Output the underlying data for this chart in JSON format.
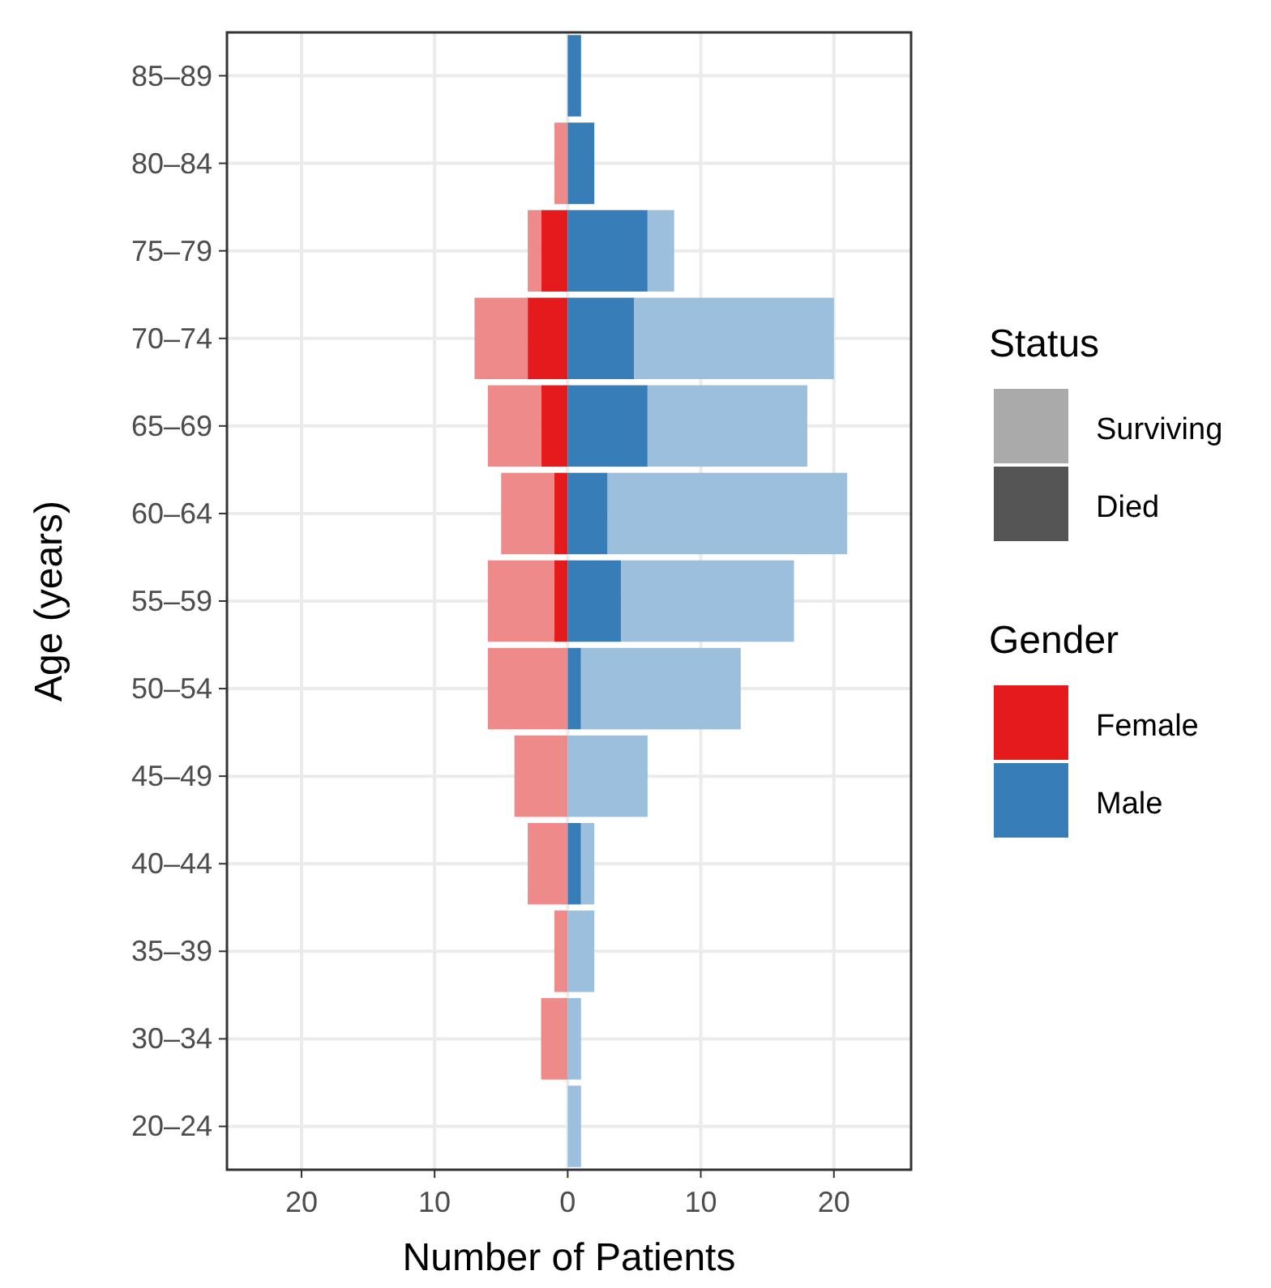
{
  "chart_data": {
    "type": "bar",
    "orientation": "horizontal",
    "stacked": true,
    "xlabel": "Number of Patients",
    "ylabel": "Age (years)",
    "categories": [
      "85–89",
      "80–84",
      "75–79",
      "70–74",
      "65–69",
      "60–64",
      "55–59",
      "50–54",
      "45–49",
      "40–44",
      "35–39",
      "30–34",
      "20–24"
    ],
    "xlim": [
      -25.6,
      25.8
    ],
    "xticks": [
      {
        "value": -20,
        "label": "20"
      },
      {
        "value": -10,
        "label": "10"
      },
      0,
      10,
      20
    ],
    "grid": true,
    "annotations": [
      "Surviving",
      "Died",
      "Female",
      "Male"
    ],
    "legend_title": [
      "Status",
      "Gender"
    ],
    "series": [
      {
        "color": "#e41a1c",
        "values": [
          0,
          0,
          -2,
          -3,
          -2,
          -1,
          -1,
          0,
          0,
          0,
          0,
          0,
          0
        ]
      },
      {
        "color": "#ef8a8b",
        "values": [
          0,
          -1,
          -1,
          -4,
          -4,
          -4,
          -5,
          -6,
          -4,
          -3,
          -1,
          -2,
          0
        ]
      },
      {
        "color": "#377eb8",
        "values": [
          1,
          2,
          6,
          5,
          6,
          3,
          4,
          1,
          0,
          1,
          0,
          0,
          0
        ]
      },
      {
        "color": "#9bbfdc",
        "values": [
          0,
          0,
          2,
          15,
          12,
          18,
          13,
          12,
          6,
          1,
          2,
          1,
          1
        ]
      }
    ]
  }
}
